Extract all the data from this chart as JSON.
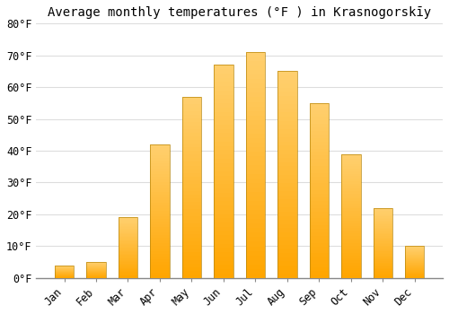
{
  "title": "Average monthly temperatures (°F ) in Krasnogorskīy",
  "months": [
    "Jan",
    "Feb",
    "Mar",
    "Apr",
    "May",
    "Jun",
    "Jul",
    "Aug",
    "Sep",
    "Oct",
    "Nov",
    "Dec"
  ],
  "values": [
    4,
    5,
    19,
    42,
    57,
    67,
    71,
    65,
    55,
    39,
    22,
    10
  ],
  "bar_color_main": "#FFA500",
  "bar_color_light": "#FFD070",
  "background_color": "#FFFFFF",
  "grid_color": "#DDDDDD",
  "ylim": [
    0,
    80
  ],
  "yticks": [
    0,
    10,
    20,
    30,
    40,
    50,
    60,
    70,
    80
  ],
  "ytick_labels": [
    "0°F",
    "10°F",
    "20°F",
    "30°F",
    "40°F",
    "50°F",
    "60°F",
    "70°F",
    "80°F"
  ],
  "title_fontsize": 10,
  "tick_fontsize": 8.5,
  "font_family": "monospace"
}
